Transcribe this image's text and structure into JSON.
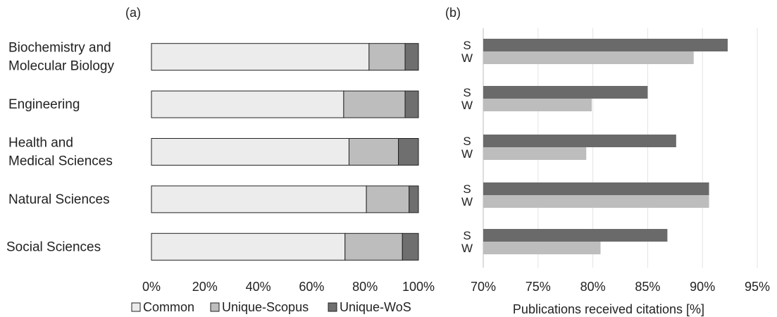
{
  "chart_data": [
    {
      "type": "bar",
      "orientation": "horizontal",
      "stacked": true,
      "panel_label": "(a)",
      "categories": [
        [
          "Biochemistry and",
          "Molecular Biology"
        ],
        [
          "Engineering"
        ],
        [
          "Health and",
          "Medical Sciences"
        ],
        [
          "Natural Sciences"
        ],
        [
          "Social Sciences"
        ]
      ],
      "series": [
        {
          "name": "Common",
          "values": [
            0.815,
            0.72,
            0.74,
            0.805,
            0.725
          ],
          "fill": "#ececec"
        },
        {
          "name": "Unique-Scopus",
          "values": [
            0.135,
            0.23,
            0.185,
            0.16,
            0.215
          ],
          "fill": "#bdbdbd"
        },
        {
          "name": "Unique-WoS",
          "values": [
            0.05,
            0.05,
            0.075,
            0.035,
            0.06
          ],
          "fill": "#6f6f6f"
        }
      ],
      "xlim": [
        0,
        1
      ],
      "xticks": [
        "0%",
        "20%",
        "40%",
        "60%",
        "80%",
        "100%"
      ],
      "legend_position": "bottom"
    },
    {
      "type": "bar",
      "orientation": "horizontal",
      "panel_label": "(b)",
      "groups": 5,
      "bar_labels": [
        "S",
        "W"
      ],
      "series": [
        {
          "key": "S",
          "values": [
            92.3,
            85.0,
            87.6,
            90.6,
            86.8
          ],
          "fill": "#6a6a6a"
        },
        {
          "key": "W",
          "values": [
            89.2,
            79.9,
            79.4,
            90.6,
            80.7
          ],
          "fill": "#bdbdbd"
        }
      ],
      "xlim": [
        70,
        95
      ],
      "xticks": [
        "70%",
        "75%",
        "80%",
        "85%",
        "90%",
        "95%"
      ],
      "xlabel": "Publications received citations [%]",
      "grid": true
    }
  ]
}
